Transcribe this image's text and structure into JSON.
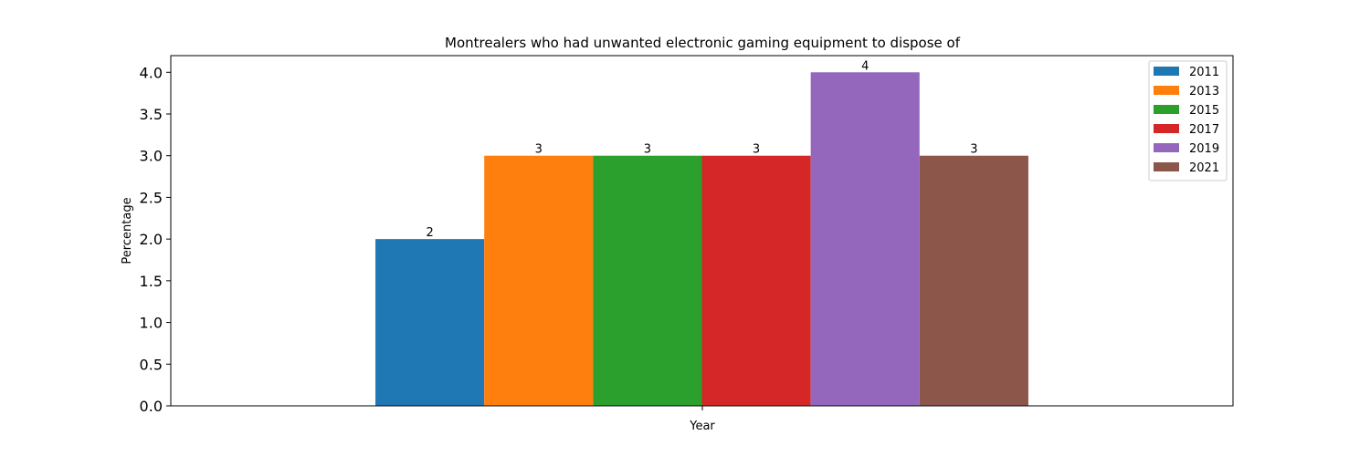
{
  "chart_data": {
    "type": "bar",
    "title": "Montrealers who had unwanted electronic gaming equipment to dispose of",
    "xlabel": "Year",
    "ylabel": "Percentage",
    "categories": [
      ""
    ],
    "ylim": [
      0,
      4.2
    ],
    "yticks": [
      "0.0",
      "0.5",
      "1.0",
      "1.5",
      "2.0",
      "2.5",
      "3.0",
      "3.5",
      "4.0"
    ],
    "grid": false,
    "legend_position": "top-right",
    "series": [
      {
        "name": "2011",
        "values": [
          2
        ],
        "label": "2",
        "color": "#1f77b4"
      },
      {
        "name": "2013",
        "values": [
          3
        ],
        "label": "3",
        "color": "#ff7f0e"
      },
      {
        "name": "2015",
        "values": [
          3
        ],
        "label": "3",
        "color": "#2ca02c"
      },
      {
        "name": "2017",
        "values": [
          3
        ],
        "label": "3",
        "color": "#d62728"
      },
      {
        "name": "2019",
        "values": [
          4
        ],
        "label": "4",
        "color": "#9467bd"
      },
      {
        "name": "2021",
        "values": [
          3
        ],
        "label": "3",
        "color": "#8c564b"
      }
    ]
  }
}
